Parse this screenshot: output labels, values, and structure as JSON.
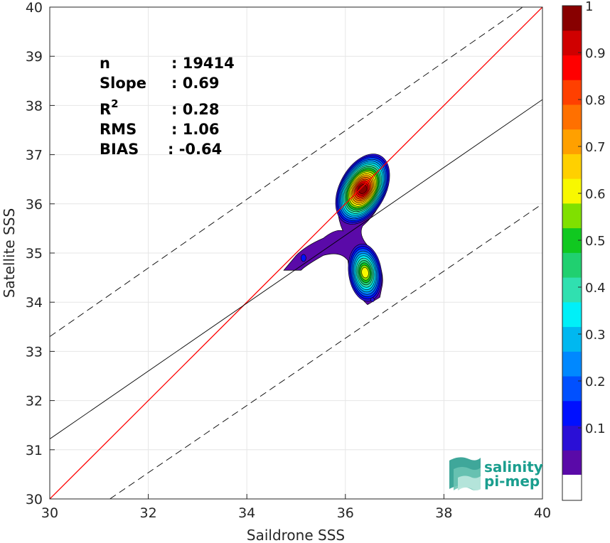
{
  "chart_data": {
    "type": "heatmap",
    "title": "",
    "xlabel": "Saildrone SSS",
    "ylabel": "Satellite SSS",
    "xlim": [
      30,
      40
    ],
    "ylim": [
      30,
      40
    ],
    "xticks": [
      "30",
      "32",
      "34",
      "36",
      "38",
      "40"
    ],
    "yticks": [
      "30",
      "31",
      "32",
      "33",
      "34",
      "35",
      "36",
      "37",
      "38",
      "39",
      "40"
    ],
    "grid": true,
    "lines": [
      {
        "name": "1:1",
        "color": "#ff0000",
        "style": "solid",
        "slope": 1.0,
        "intercept": 0.0
      },
      {
        "name": "fit",
        "color": "#000000",
        "style": "solid",
        "points": [
          [
            30,
            31.22
          ],
          [
            40,
            38.12
          ]
        ]
      },
      {
        "name": "upper",
        "color": "#000000",
        "style": "dashed",
        "points": [
          [
            30,
            33.3
          ],
          [
            40,
            40.28
          ]
        ]
      },
      {
        "name": "lower",
        "color": "#000000",
        "style": "dashed",
        "points": [
          [
            31.22,
            30
          ],
          [
            40,
            36.0
          ]
        ]
      }
    ],
    "stats": [
      {
        "label": "n",
        "sup": "",
        "value": ": 19414"
      },
      {
        "label": "Slope",
        "sup": "",
        "value": ": 0.69"
      },
      {
        "label": "R",
        "sup": "2",
        "value": ": 0.28"
      },
      {
        "label": "RMS",
        "sup": "",
        "value": ": 1.06"
      },
      {
        "label": "BIAS",
        "sup": "",
        "value": ": -0.64"
      }
    ],
    "density_peaks": [
      {
        "x": 36.35,
        "y": 36.3,
        "value": 1.0
      },
      {
        "x": 36.4,
        "y": 34.6,
        "value": 0.62
      },
      {
        "x": 35.15,
        "y": 34.9,
        "value": 0.12
      }
    ],
    "colorbar": {
      "range": [
        0,
        1
      ],
      "ticks": [
        "0.1",
        "0.2",
        "0.3",
        "0.4",
        "0.5",
        "0.6",
        "0.7",
        "0.8",
        "0.9",
        "1"
      ],
      "colors": [
        "#5a0aa8",
        "#2a0fd6",
        "#0010ff",
        "#0050ff",
        "#0088ff",
        "#00b8f0",
        "#00f0f8",
        "#30e0b0",
        "#20d070",
        "#10c820",
        "#80e000",
        "#f8f800",
        "#ffd000",
        "#ffa000",
        "#ff7000",
        "#ff4000",
        "#ff0000",
        "#d00000",
        "#880000"
      ]
    }
  },
  "logo": {
    "line1": "salinity",
    "line2": "pi-mep"
  }
}
